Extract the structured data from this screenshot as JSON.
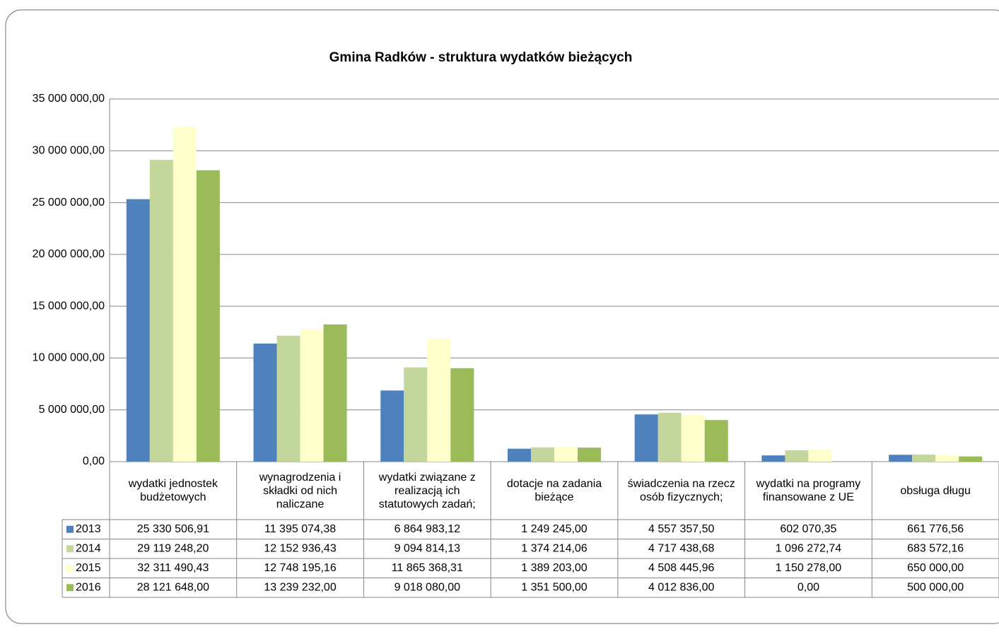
{
  "chart_data": {
    "type": "bar",
    "title": "Gmina Radków - struktura wydatków bieżących",
    "categories": [
      "wydatki jednostek budżetowych",
      "wynagrodzenia i składki od nich naliczane",
      "wydatki związane z realizacją ich statutowych zadań;",
      "dotacje na zadania bieżące",
      "świadczenia na rzecz osób fizycznych;",
      "wydatki na programy finansowane z UE",
      "obsługa długu"
    ],
    "series": [
      {
        "name": "2013",
        "color": "#4f81bd",
        "values": [
          25330506.91,
          11395074.38,
          6864983.12,
          1249245.0,
          4557357.5,
          602070.35,
          661776.56
        ],
        "value_labels": [
          "25 330 506,91",
          "11 395 074,38",
          "6 864 983,12",
          "1 249 245,00",
          "4 557 357,50",
          "602 070,35",
          "661 776,56"
        ]
      },
      {
        "name": "2014",
        "color": "#c3d69b",
        "values": [
          29119248.2,
          12152936.43,
          9094814.13,
          1374214.06,
          4717438.68,
          1096272.74,
          683572.16
        ],
        "value_labels": [
          "29 119 248,20",
          "12 152 936,43",
          "9 094 814,13",
          "1 374 214,06",
          "4 717 438,68",
          "1 096 272,74",
          "683 572,16"
        ]
      },
      {
        "name": "2015",
        "color": "#ffffcc",
        "values": [
          32311490.43,
          12748195.16,
          11865368.31,
          1389203.0,
          4508445.96,
          1150278.0,
          650000.0
        ],
        "value_labels": [
          "32 311 490,43",
          "12 748 195,16",
          "11 865 368,31",
          "1 389 203,00",
          "4 508 445,96",
          "1 150 278,00",
          "650 000,00"
        ]
      },
      {
        "name": "2016",
        "color": "#9bbb59",
        "values": [
          28121648.0,
          13239232.0,
          9018080.0,
          1351500.0,
          4012836.0,
          0,
          500000.0
        ],
        "value_labels": [
          "28 121 648,00",
          "13 239 232,00",
          "9 018 080,00",
          "1 351 500,00",
          "4 012 836,00",
          "0,00",
          "500 000,00"
        ]
      }
    ],
    "ylim": [
      0,
      35000000
    ],
    "yticks": [
      {
        "value": 0,
        "label": "0,00"
      },
      {
        "value": 5000000,
        "label": "5 000 000,00"
      },
      {
        "value": 10000000,
        "label": "10 000 000,00"
      },
      {
        "value": 15000000,
        "label": "15 000 000,00"
      },
      {
        "value": 20000000,
        "label": "20 000 000,00"
      },
      {
        "value": 25000000,
        "label": "25 000 000,00"
      },
      {
        "value": 30000000,
        "label": "30 000 000,00"
      },
      {
        "value": 35000000,
        "label": "35 000 000,00"
      }
    ],
    "grid": true
  }
}
